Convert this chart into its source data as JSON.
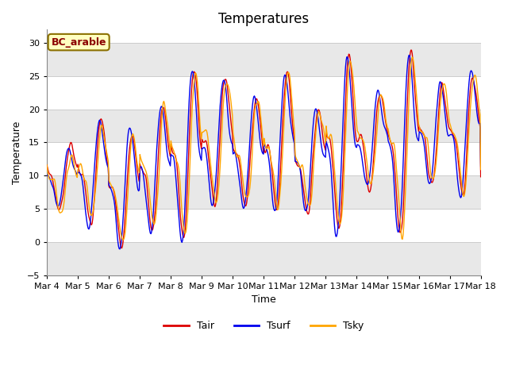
{
  "title": "Temperatures",
  "xlabel": "Time",
  "ylabel": "Temperature",
  "ylim": [
    -5,
    32
  ],
  "yticks": [
    -5,
    0,
    5,
    10,
    15,
    20,
    25,
    30
  ],
  "annotation_text": "BC_arable",
  "annotation_color": "#8B0000",
  "annotation_bg": "#FFFFC0",
  "annotation_border": "#8B7000",
  "legend_labels": [
    "Tair",
    "Tsurf",
    "Tsky"
  ],
  "colors": [
    "#DD0000",
    "#0000EE",
    "#FFA500"
  ],
  "background_color": "#FFFFFF",
  "band_color": "#E8E8E8",
  "grid_color": "#CCCCCC",
  "title_fontsize": 12,
  "axis_fontsize": 9,
  "tick_fontsize": 8,
  "xtick_labels": [
    "Mar 4",
    "Mar 5",
    "Mar 6",
    "Mar 7",
    "Mar 8",
    "Mar 9",
    "Mar 10",
    "Mar 11",
    "Mar 12",
    "Mar 13",
    "Mar 14",
    "Mar 15",
    "Mar 16",
    "Mar 17",
    "Mar 18"
  ]
}
